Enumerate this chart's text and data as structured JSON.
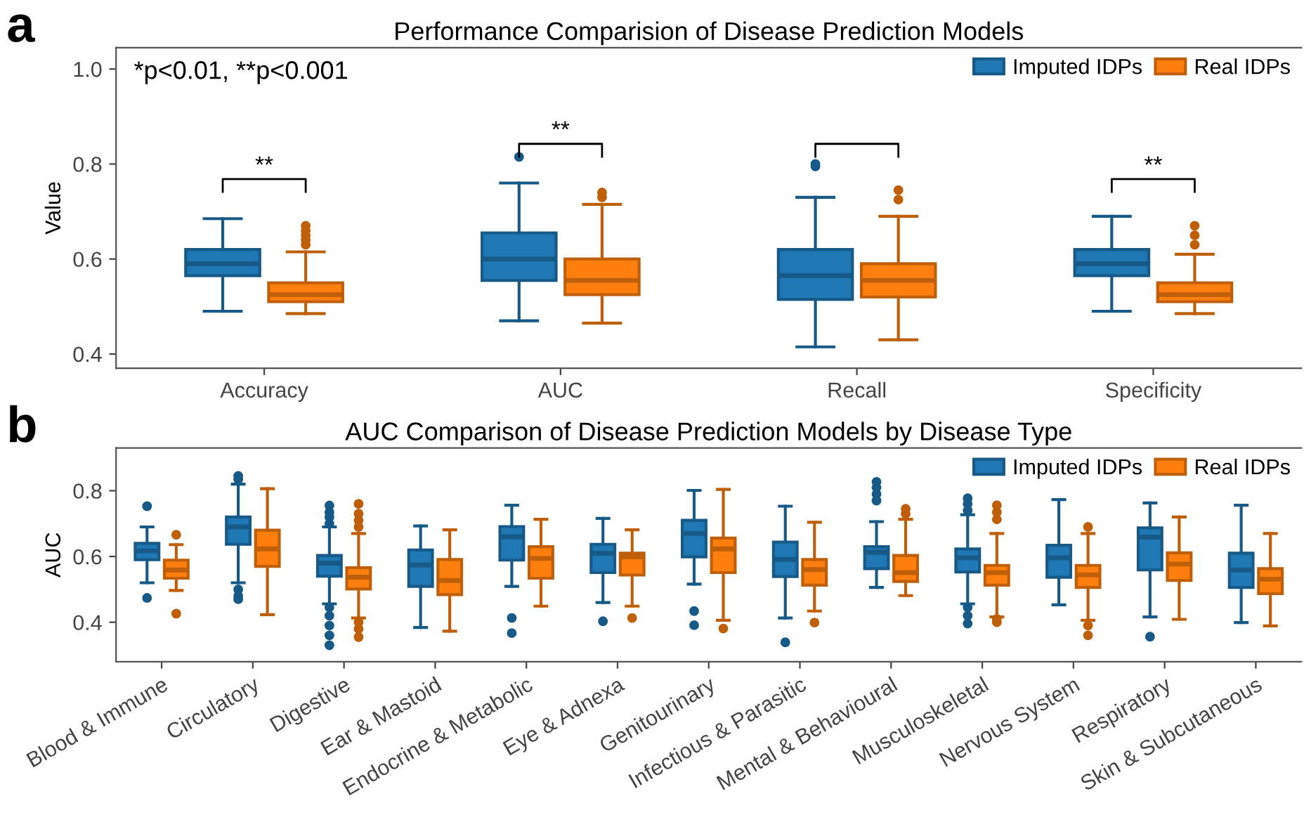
{
  "chart_data": [
    {
      "type": "box",
      "title": "Performance Comparision of Disease Prediction Models",
      "ylabel": "Value",
      "categories": [
        "Accuracy",
        "AUC",
        "Recall",
        "Specificity"
      ],
      "ylim": [
        0.37,
        1.045
      ],
      "yticks": [
        0.4,
        0.6,
        0.8,
        {
          "value": 1.0,
          "label": "1.0"
        }
      ],
      "grid": false,
      "legend": "top right",
      "annotations": [
        "a",
        "*p<0.01, **p<0.001",
        "**",
        "**",
        "**"
      ],
      "series": [
        {
          "name": "Imputed IDPs",
          "color": "#1f78b4",
          "boxes": [
            {
              "low": 0.49,
              "q1": 0.565,
              "median": 0.59,
              "q3": 0.62,
              "high": 0.685
            },
            {
              "low": 0.47,
              "q1": 0.555,
              "median": 0.6,
              "q3": 0.655,
              "high": 0.76,
              "outliers": [
                0.815
              ]
            },
            {
              "low": 0.415,
              "q1": 0.515,
              "median": 0.565,
              "q3": 0.62,
              "high": 0.73,
              "outliers": [
                0.795,
                0.8
              ]
            },
            {
              "low": 0.49,
              "q1": 0.565,
              "median": 0.59,
              "q3": 0.62,
              "high": 0.69
            }
          ]
        },
        {
          "name": "Real IDPs",
          "color": "#ff7f0e",
          "boxes": [
            {
              "low": 0.485,
              "q1": 0.51,
              "median": 0.525,
              "q3": 0.55,
              "high": 0.615,
              "outliers": [
                0.63,
                0.64,
                0.65,
                0.66,
                0.67
              ]
            },
            {
              "low": 0.465,
              "q1": 0.525,
              "median": 0.555,
              "q3": 0.6,
              "high": 0.715,
              "outliers": [
                0.73,
                0.74
              ]
            },
            {
              "low": 0.43,
              "q1": 0.52,
              "median": 0.555,
              "q3": 0.59,
              "high": 0.69,
              "outliers": [
                0.725,
                0.745
              ]
            },
            {
              "low": 0.485,
              "q1": 0.51,
              "median": 0.525,
              "q3": 0.55,
              "high": 0.61,
              "outliers": [
                0.63,
                0.65,
                0.67
              ]
            }
          ]
        }
      ]
    },
    {
      "type": "box",
      "title": "AUC Comparison of Disease Prediction Models by Disease Type",
      "ylabel": "AUC",
      "categories": [
        "Blood & Immune",
        "Circulatory",
        "Digestive",
        "Ear & Mastoid",
        "Endocrine & Metabolic",
        "Eye & Adnexa",
        "Genitourinary",
        "Infectious & Parasitic",
        "Mental & Behavioural",
        "Musculoskeletal",
        "Nervous System",
        "Respiratory",
        "Skin & Subcutaneous"
      ],
      "ylim": [
        0.28,
        0.93
      ],
      "yticks": [
        0.4,
        0.6,
        0.8
      ],
      "grid": false,
      "legend": "top right",
      "annotations": [
        "b"
      ],
      "series": [
        {
          "name": "Imputed IDPs",
          "color": "#1f78b4",
          "boxes": [
            {
              "low": 0.52,
              "q1": 0.59,
              "median": 0.617,
              "q3": 0.64,
              "high": 0.69,
              "outliers": [
                0.753,
                0.474
              ]
            },
            {
              "low": 0.52,
              "q1": 0.637,
              "median": 0.69,
              "q3": 0.72,
              "high": 0.82,
              "outliers": [
                0.835,
                0.845,
                0.5,
                0.48,
                0.47
              ]
            },
            {
              "low": 0.456,
              "q1": 0.54,
              "median": 0.58,
              "q3": 0.603,
              "high": 0.69,
              "outliers": [
                0.7,
                0.72,
                0.735,
                0.755,
                0.445,
                0.42,
                0.39,
                0.36,
                0.33
              ]
            },
            {
              "low": 0.384,
              "q1": 0.509,
              "median": 0.574,
              "q3": 0.62,
              "high": 0.693
            },
            {
              "low": 0.509,
              "q1": 0.589,
              "median": 0.66,
              "q3": 0.691,
              "high": 0.756,
              "outliers": [
                0.413,
                0.367
              ]
            },
            {
              "low": 0.46,
              "q1": 0.551,
              "median": 0.61,
              "q3": 0.637,
              "high": 0.716,
              "outliers": [
                0.403
              ]
            },
            {
              "low": 0.516,
              "q1": 0.599,
              "median": 0.67,
              "q3": 0.71,
              "high": 0.801,
              "outliers": [
                0.434,
                0.391
              ]
            },
            {
              "low": 0.413,
              "q1": 0.539,
              "median": 0.591,
              "q3": 0.644,
              "high": 0.753,
              "outliers": [
                0.339
              ]
            },
            {
              "low": 0.506,
              "q1": 0.563,
              "median": 0.613,
              "q3": 0.63,
              "high": 0.706,
              "outliers": [
                0.77,
                0.79,
                0.81,
                0.827
              ]
            },
            {
              "low": 0.456,
              "q1": 0.553,
              "median": 0.596,
              "q3": 0.623,
              "high": 0.727,
              "outliers": [
                0.74,
                0.76,
                0.777,
                0.445,
                0.42,
                0.396
              ]
            },
            {
              "low": 0.453,
              "q1": 0.537,
              "median": 0.596,
              "q3": 0.634,
              "high": 0.773
            },
            {
              "low": 0.416,
              "q1": 0.559,
              "median": 0.659,
              "q3": 0.687,
              "high": 0.763,
              "outliers": [
                0.356
              ]
            },
            {
              "low": 0.399,
              "q1": 0.506,
              "median": 0.559,
              "q3": 0.61,
              "high": 0.756
            }
          ]
        },
        {
          "name": "Real IDPs",
          "color": "#ff7f0e",
          "boxes": [
            {
              "low": 0.497,
              "q1": 0.534,
              "median": 0.559,
              "q3": 0.589,
              "high": 0.636,
              "outliers": [
                0.666,
                0.426
              ]
            },
            {
              "low": 0.423,
              "q1": 0.57,
              "median": 0.623,
              "q3": 0.68,
              "high": 0.806
            },
            {
              "low": 0.413,
              "q1": 0.501,
              "median": 0.537,
              "q3": 0.566,
              "high": 0.67,
              "outliers": [
                0.69,
                0.71,
                0.73,
                0.76,
                0.4,
                0.38,
                0.355
              ]
            },
            {
              "low": 0.373,
              "q1": 0.484,
              "median": 0.527,
              "q3": 0.591,
              "high": 0.681
            },
            {
              "low": 0.449,
              "q1": 0.534,
              "median": 0.594,
              "q3": 0.63,
              "high": 0.713
            },
            {
              "low": 0.449,
              "q1": 0.544,
              "median": 0.599,
              "q3": 0.61,
              "high": 0.681,
              "outliers": [
                0.413
              ]
            },
            {
              "low": 0.406,
              "q1": 0.551,
              "median": 0.623,
              "q3": 0.656,
              "high": 0.804,
              "outliers": [
                0.381
              ]
            },
            {
              "low": 0.434,
              "q1": 0.513,
              "median": 0.56,
              "q3": 0.591,
              "high": 0.704,
              "outliers": [
                0.399
              ]
            },
            {
              "low": 0.481,
              "q1": 0.524,
              "median": 0.551,
              "q3": 0.603,
              "high": 0.713,
              "outliers": [
                0.73,
                0.745
              ]
            },
            {
              "low": 0.416,
              "q1": 0.513,
              "median": 0.551,
              "q3": 0.573,
              "high": 0.67,
              "outliers": [
                0.713,
                0.735,
                0.756,
                0.41,
                0.4
              ]
            },
            {
              "low": 0.406,
              "q1": 0.506,
              "median": 0.544,
              "q3": 0.573,
              "high": 0.67,
              "outliers": [
                0.69,
                0.39,
                0.36
              ]
            },
            {
              "low": 0.409,
              "q1": 0.527,
              "median": 0.577,
              "q3": 0.611,
              "high": 0.72
            },
            {
              "low": 0.389,
              "q1": 0.487,
              "median": 0.531,
              "q3": 0.563,
              "high": 0.67
            }
          ]
        }
      ]
    }
  ]
}
